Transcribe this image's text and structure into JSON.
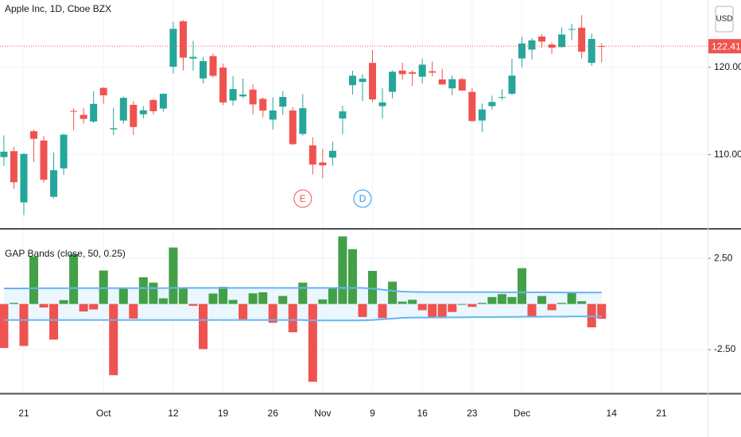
{
  "chart_data": [
    {
      "type": "candlestick",
      "title": "Apple Inc, 1D, Cboe BZX",
      "currency": "USD",
      "up_color": "#26a69a",
      "down_color": "#ef5350",
      "grid": true,
      "categories": [
        null,
        null,
        "21",
        null,
        null,
        null,
        null,
        null,
        null,
        null,
        "Oct",
        null,
        null,
        null,
        null,
        null,
        null,
        "12",
        null,
        null,
        null,
        null,
        "19",
        null,
        null,
        null,
        null,
        "26",
        null,
        null,
        null,
        null,
        "Nov",
        null,
        null,
        null,
        null,
        "9",
        null,
        null,
        null,
        null,
        "16",
        null,
        null,
        null,
        null,
        "23",
        null,
        null,
        null,
        null,
        "Dec",
        null,
        null,
        null,
        null,
        null,
        null,
        null,
        null,
        "14",
        null,
        null,
        null,
        null,
        "21",
        null,
        null,
        null,
        null
      ],
      "open": [
        109.72,
        110.4,
        104.54,
        112.68,
        111.62,
        105.17,
        108.43,
        115.01,
        114.55,
        113.79,
        117.64,
        112.89,
        113.91,
        115.7,
        114.62,
        116.25,
        115.28,
        120.06,
        125.27,
        121.0,
        118.72,
        121.28,
        119.96,
        116.2,
        116.67,
        117.45,
        116.39,
        114.01,
        115.49,
        115.05,
        112.37,
        111.06,
        109.11,
        109.66,
        114.14,
        117.95,
        118.32,
        120.5,
        115.55,
        117.19,
        119.62,
        119.44,
        118.92,
        119.55,
        118.61,
        117.59,
        118.64,
        117.18,
        113.91,
        115.55,
        116.57,
        116.97,
        121.01,
        122.02,
        123.52,
        122.6,
        122.31,
        124.37,
        124.53,
        120.5,
        122.43,
        null,
        null,
        null,
        null,
        null,
        null,
        null,
        null,
        null,
        null
      ],
      "high": [
        112.2,
        110.88,
        110.19,
        112.86,
        112.11,
        110.25,
        112.44,
        115.32,
        115.31,
        117.26,
        117.72,
        115.37,
        116.65,
        116.12,
        115.55,
        116.4,
        117.0,
        125.18,
        125.39,
        123.03,
        121.2,
        121.55,
        120.42,
        118.98,
        118.71,
        118.04,
        116.55,
        116.55,
        117.28,
        115.43,
        116.93,
        111.99,
        110.68,
        111.49,
        115.59,
        119.62,
        119.2,
        121.99,
        117.59,
        119.63,
        120.53,
        119.67,
        120.99,
        120.67,
        119.82,
        119.06,
        118.77,
        117.62,
        115.85,
        116.75,
        117.49,
        120.97,
        123.47,
        123.37,
        123.78,
        122.86,
        124.57,
        124.98,
        125.95,
        123.87,
        122.76,
        null,
        null,
        null,
        null,
        null,
        null,
        null,
        null,
        null,
        null
      ],
      "low": [
        108.71,
        106.09,
        103.1,
        109.16,
        106.77,
        105.0,
        107.67,
        112.78,
        113.57,
        113.62,
        115.83,
        112.22,
        113.55,
        112.25,
        114.13,
        114.59,
        114.92,
        119.28,
        119.65,
        119.62,
        118.15,
        118.81,
        115.66,
        115.63,
        116.45,
        114.59,
        114.28,
        112.88,
        114.54,
        111.1,
        112.2,
        107.72,
        107.32,
        108.73,
        112.35,
        116.87,
        116.13,
        116.05,
        114.13,
        116.44,
        118.57,
        117.87,
        118.15,
        118.96,
        118.0,
        116.81,
        117.29,
        113.75,
        112.59,
        115.17,
        116.22,
        116.81,
        120.01,
        120.89,
        122.21,
        121.52,
        122.25,
        123.09,
        121.0,
        120.15,
        120.55,
        null,
        null,
        null,
        null,
        null,
        null,
        null,
        null,
        null,
        null
      ],
      "close": [
        110.34,
        106.84,
        110.08,
        111.81,
        107.12,
        108.22,
        112.28,
        114.96,
        114.09,
        115.81,
        116.79,
        113.02,
        116.5,
        113.16,
        115.08,
        114.97,
        116.97,
        124.4,
        121.1,
        121.19,
        120.71,
        119.02,
        115.98,
        117.51,
        116.87,
        115.75,
        115.04,
        115.05,
        116.6,
        111.2,
        115.32,
        108.86,
        108.77,
        110.44,
        114.95,
        119.03,
        118.69,
        116.32,
        115.97,
        119.49,
        119.21,
        119.26,
        120.3,
        119.39,
        118.03,
        118.64,
        117.34,
        113.85,
        115.17,
        116.03,
        116.59,
        119.05,
        122.72,
        123.08,
        122.94,
        122.25,
        123.75,
        124.38,
        121.78,
        123.24,
        122.41,
        null,
        null,
        null,
        null,
        null,
        null,
        null,
        null,
        null,
        null
      ],
      "ylim": [
        101.6,
        127.7
      ],
      "yticks": [
        {
          "value": 110,
          "label": "110.00"
        },
        {
          "value": 120,
          "label": "120.00"
        }
      ],
      "events": [
        {
          "label": "E",
          "color": "#ef5350"
        },
        {
          "label": "D",
          "color": "#2196f3"
        }
      ]
    },
    {
      "type": "histogram-bands",
      "title": "GAP Bands  (close, 50, 0.25)",
      "positive_color": "#43a047",
      "negative_color": "#ef5350",
      "band_color": "#64b5f6",
      "band_fill": "#e3f2fd",
      "values": [
        -2.41,
        0.06,
        -2.3,
        2.6,
        -0.19,
        -1.95,
        0.21,
        2.73,
        -0.41,
        -0.3,
        1.83,
        -3.9,
        0.89,
        -0.8,
        1.46,
        1.17,
        0.31,
        3.09,
        0.87,
        -0.1,
        -2.47,
        0.57,
        0.94,
        0.22,
        -0.84,
        0.58,
        0.64,
        -1.03,
        0.44,
        -1.55,
        1.17,
        -4.26,
        0.25,
        0.89,
        3.7,
        3.0,
        -0.71,
        1.81,
        -0.77,
        1.22,
        0.13,
        0.23,
        -0.34,
        -0.75,
        -0.78,
        -0.44,
        0.0,
        -0.16,
        0.06,
        0.38,
        0.54,
        0.38,
        1.96,
        -0.7,
        0.44,
        -0.34,
        0.06,
        0.62,
        0.15,
        -1.28,
        -0.81,
        null,
        null,
        null,
        null,
        null,
        null,
        null,
        null,
        null,
        null
      ],
      "band_upper": [
        0.85,
        0.85,
        0.85,
        0.86,
        0.86,
        0.86,
        0.86,
        0.87,
        0.87,
        0.87,
        0.87,
        0.87,
        0.87,
        0.87,
        0.87,
        0.87,
        0.87,
        0.88,
        0.88,
        0.88,
        0.88,
        0.88,
        0.88,
        0.88,
        0.88,
        0.88,
        0.88,
        0.88,
        0.88,
        0.88,
        0.88,
        0.88,
        0.88,
        0.88,
        0.88,
        0.88,
        0.88,
        0.84,
        0.78,
        0.72,
        0.68,
        0.66,
        0.65,
        0.65,
        0.65,
        0.65,
        0.65,
        0.65,
        0.65,
        0.65,
        0.64,
        0.64,
        0.64,
        0.64,
        0.64,
        0.64,
        0.63,
        0.63,
        0.63,
        0.63,
        0.63,
        null,
        null,
        null,
        null,
        null,
        null,
        null,
        null,
        null,
        null
      ],
      "band_lower": [
        -0.88,
        -0.88,
        -0.88,
        -0.88,
        -0.88,
        -0.88,
        -0.88,
        -0.88,
        -0.88,
        -0.88,
        -0.88,
        -0.88,
        -0.88,
        -0.88,
        -0.88,
        -0.88,
        -0.88,
        -0.88,
        -0.88,
        -0.88,
        -0.88,
        -0.88,
        -0.88,
        -0.88,
        -0.88,
        -0.88,
        -0.88,
        -0.88,
        -0.88,
        -0.88,
        -0.88,
        -0.9,
        -0.9,
        -0.9,
        -0.9,
        -0.9,
        -0.9,
        -0.88,
        -0.84,
        -0.8,
        -0.76,
        -0.74,
        -0.74,
        -0.74,
        -0.73,
        -0.73,
        -0.73,
        -0.72,
        -0.72,
        -0.72,
        -0.71,
        -0.71,
        -0.7,
        -0.7,
        -0.7,
        -0.69,
        -0.69,
        -0.68,
        -0.68,
        -0.68,
        -0.68,
        null,
        null,
        null,
        null,
        null,
        null,
        null,
        null,
        null,
        null
      ],
      "ylim": [
        -4.89,
        4.07
      ],
      "yticks": [
        {
          "value": 2.5,
          "label": "2.50"
        },
        {
          "value": -2.5,
          "label": "-2.50"
        }
      ]
    }
  ]
}
